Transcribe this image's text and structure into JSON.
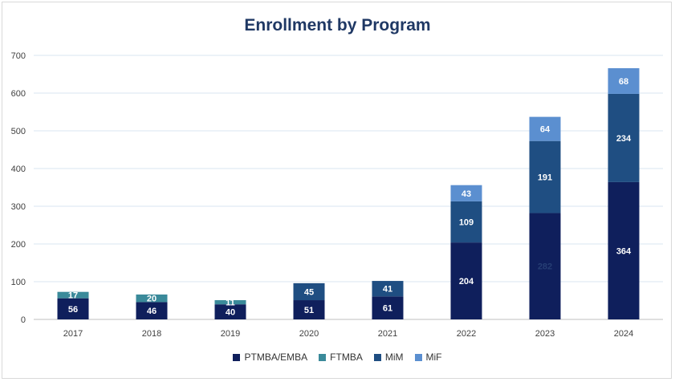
{
  "chart_data": {
    "type": "bar",
    "stacked": true,
    "title": "Enrollment by Program",
    "xlabel": "",
    "ylabel": "",
    "ylim": [
      0,
      700
    ],
    "yticks": [
      0,
      100,
      200,
      300,
      400,
      500,
      600,
      700
    ],
    "grid": true,
    "legend_position": "bottom",
    "categories": [
      "2017",
      "2018",
      "2019",
      "2020",
      "2021",
      "2022",
      "2023",
      "2024"
    ],
    "series": [
      {
        "name": "PTMBA/EMBA",
        "color": "#0f1f5c",
        "label_color": "#ffffff",
        "values": [
          56,
          46,
          40,
          51,
          61,
          204,
          282,
          364
        ],
        "labels": [
          "56",
          "46",
          "40",
          "51",
          "61",
          "204",
          "282",
          "364"
        ]
      },
      {
        "name": "FTMBA",
        "color": "#3a8a9a",
        "label_color": "#ffffff",
        "values": [
          17,
          20,
          11,
          0,
          0,
          0,
          0,
          0
        ],
        "labels": [
          "17",
          "20",
          "11",
          "",
          "",
          "",
          "",
          ""
        ]
      },
      {
        "name": "MiM",
        "color": "#1f4e82",
        "label_color": "#ffffff",
        "values": [
          0,
          0,
          0,
          45,
          41,
          109,
          191,
          234
        ],
        "labels": [
          "",
          "",
          "",
          "45",
          "41",
          "109",
          "191",
          "234"
        ]
      },
      {
        "name": "MiF",
        "color": "#5b8fd0",
        "label_color": "#ffffff",
        "values": [
          0,
          0,
          0,
          0,
          0,
          43,
          64,
          68
        ],
        "labels": [
          "",
          "",
          "",
          "",
          "",
          "43",
          "64",
          "68"
        ]
      }
    ],
    "label_overrides": {
      "0-6": "#263e74"
    }
  }
}
